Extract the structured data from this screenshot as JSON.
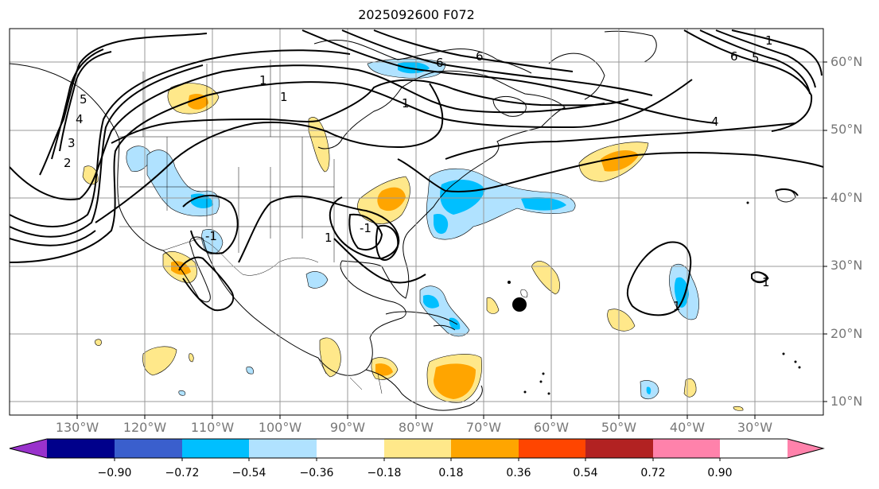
{
  "title": "2025092600 F072",
  "lat_labels": [
    "60°N",
    "50°N",
    "40°N",
    "30°N",
    "20°N",
    "10°N"
  ],
  "lon_labels": [
    "130°W",
    "120°W",
    "110°W",
    "100°W",
    "90°W",
    "80°W",
    "70°W",
    "60°W",
    "50°W",
    "40°W",
    "30°W"
  ],
  "colorbar": {
    "ticks": [
      "−0.90",
      "−0.72",
      "−0.54",
      "−0.36",
      "−0.18",
      "0.18",
      "0.36",
      "0.54",
      "0.72",
      "0.90"
    ],
    "colors": [
      "#9932cc",
      "#00008b",
      "#3a5fcd",
      "#00bfff",
      "#b0e2ff",
      "#ffffff",
      "#ffe88a",
      "#ffa500",
      "#ff4500",
      "#b22222",
      "#ff82ab"
    ]
  },
  "contour_labels": [
    "6",
    "6",
    "6",
    "5",
    "4",
    "1",
    "1",
    "1",
    "1",
    "2",
    "3",
    "4",
    "5",
    "-1",
    "-1",
    "1",
    "1",
    "1"
  ],
  "marker": {
    "name": "storm-position-dot",
    "lon": "65°W",
    "lat": "24°N"
  }
}
